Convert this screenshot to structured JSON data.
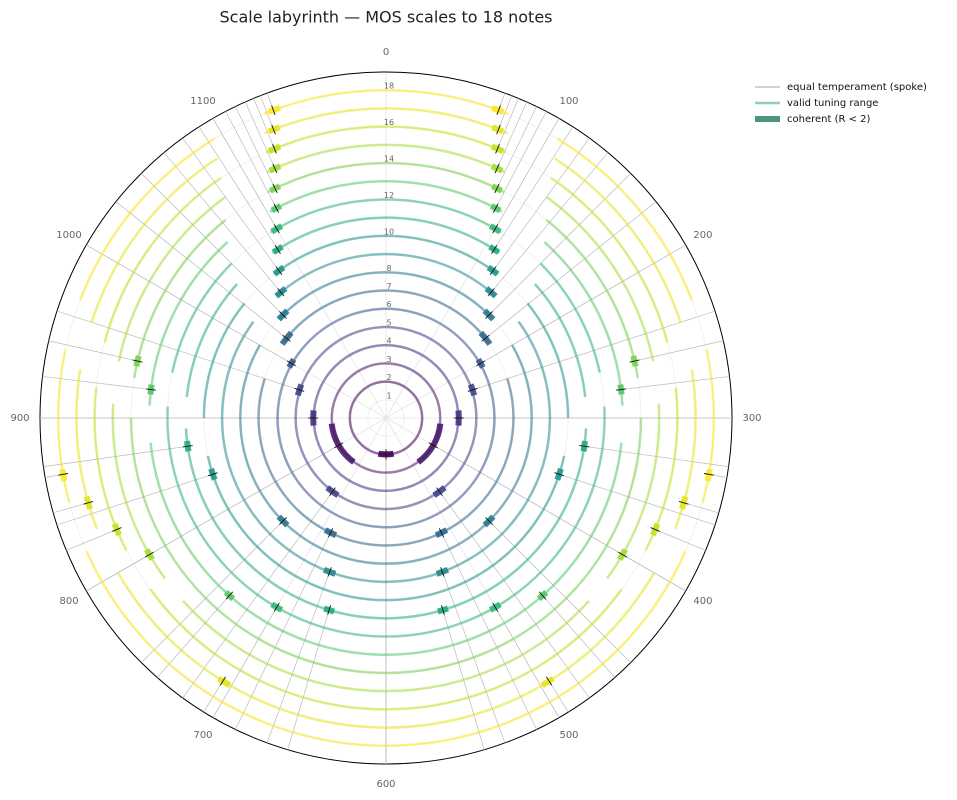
{
  "chart_data": {
    "type": "polar-mos",
    "title": "Scale labyrinth — MOS scales to 18 notes",
    "theta_range": [
      0,
      1200
    ],
    "thetaticks": [
      0,
      100,
      200,
      300,
      400,
      500,
      600,
      700,
      800,
      900,
      1000,
      1100
    ],
    "rlim": [
      0,
      19
    ],
    "rticks": [
      1,
      2,
      3,
      4,
      5,
      6,
      7,
      8,
      10,
      12,
      14,
      16,
      18
    ],
    "legend": {
      "spoke": "equal temperament (spoke)",
      "range": "valid tuning range",
      "coherent": "coherent (R < 2)"
    },
    "rings": [
      {
        "n": 2,
        "color": "#440154",
        "ranges": [
          [
            0,
            600
          ]
        ],
        "coherent": [
          [
            560,
            600
          ]
        ],
        "et": [
          600
        ]
      },
      {
        "n": 3,
        "color": "#481a6c",
        "ranges": [
          [
            0,
            600
          ]
        ],
        "coherent": [
          [
            320,
            480
          ]
        ],
        "et": [
          400
        ]
      },
      {
        "n": 4,
        "color": "#472f7d",
        "ranges": [
          [
            0,
            600
          ]
        ],
        "coherent": [
          [
            280,
            320
          ]
        ],
        "et": [
          300
        ]
      },
      {
        "n": 5,
        "color": "#414487",
        "ranges": [
          [
            0,
            600
          ]
        ],
        "coherent": [
          [
            228,
            252
          ],
          [
            466,
            494
          ]
        ],
        "et": [
          240,
          480
        ]
      },
      {
        "n": 6,
        "color": "#39568c",
        "ranges": [
          [
            0,
            600
          ]
        ],
        "coherent": [
          [
            192,
            208
          ]
        ],
        "et": [
          200
        ]
      },
      {
        "n": 7,
        "color": "#31688e",
        "ranges": [
          [
            0,
            178
          ],
          [
            240,
            600
          ]
        ],
        "coherent": [
          [
            160,
            182
          ],
          [
            505,
            523
          ]
        ],
        "et": [
          171,
          514
        ]
      },
      {
        "n": 8,
        "color": "#2a788e",
        "ranges": [
          [
            0,
            156
          ],
          [
            200,
            600
          ]
        ],
        "coherent": [
          [
            142,
            158
          ],
          [
            442,
            458
          ]
        ],
        "et": [
          150,
          450
        ]
      },
      {
        "n": 9,
        "color": "#23888e",
        "ranges": [
          [
            0,
            140
          ],
          [
            180,
            600
          ]
        ],
        "coherent": [
          [
            126,
            140
          ],
          [
            526,
            540
          ]
        ],
        "et": [
          133,
          533
        ]
      },
      {
        "n": 10,
        "color": "#1f988b",
        "ranges": [
          [
            0,
            126
          ],
          [
            170,
            300
          ],
          [
            340,
            600
          ]
        ],
        "coherent": [
          [
            114,
            126
          ],
          [
            354,
            366
          ]
        ],
        "et": [
          120,
          360
        ]
      },
      {
        "n": 11,
        "color": "#22a884",
        "ranges": [
          [
            0,
            115
          ],
          [
            160,
            280
          ],
          [
            310,
            600
          ]
        ],
        "coherent": [
          [
            104,
            114
          ],
          [
            322,
            332
          ],
          [
            540,
            550
          ]
        ],
        "et": [
          109,
          327,
          545
        ]
      },
      {
        "n": 12,
        "color": "#35b779",
        "ranges": [
          [
            0,
            106
          ],
          [
            150,
            260
          ],
          [
            290,
            600
          ]
        ],
        "coherent": [
          [
            95,
            105
          ],
          [
            495,
            505
          ]
        ],
        "et": [
          100,
          500
        ]
      },
      {
        "n": 13,
        "color": "#54c568",
        "ranges": [
          [
            0,
            98
          ],
          [
            140,
            290
          ],
          [
            320,
            600
          ]
        ],
        "coherent": [
          [
            88,
            96
          ],
          [
            273,
            281
          ],
          [
            458,
            466
          ]
        ],
        "et": [
          92,
          277,
          462
        ]
      },
      {
        "n": 14,
        "color": "#7ad151",
        "ranges": [
          [
            0,
            92
          ],
          [
            130,
            270
          ],
          [
            300,
            600
          ]
        ],
        "coherent": [
          [
            82,
            90
          ],
          [
            253,
            261
          ]
        ],
        "et": [
          86,
          257
        ]
      },
      {
        "n": 15,
        "color": "#a5db36",
        "ranges": [
          [
            0,
            86
          ],
          [
            120,
            260
          ],
          [
            290,
            420
          ],
          [
            440,
            600
          ]
        ],
        "coherent": [
          [
            76,
            84
          ],
          [
            396,
            404
          ]
        ],
        "et": [
          80,
          400
        ]
      },
      {
        "n": 16,
        "color": "#c8e020",
        "ranges": [
          [
            0,
            81
          ],
          [
            115,
            250
          ],
          [
            280,
            390
          ],
          [
            420,
            600
          ]
        ],
        "coherent": [
          [
            71,
            79
          ],
          [
            371,
            379
          ]
        ],
        "et": [
          75,
          375
        ]
      },
      {
        "n": 17,
        "color": "#e2e418",
        "ranges": [
          [
            0,
            77
          ],
          [
            110,
            240
          ],
          [
            270,
            370
          ],
          [
            400,
            600
          ]
        ],
        "coherent": [
          [
            67,
            74
          ],
          [
            349,
            357
          ],
          [
            491,
            499
          ]
        ],
        "et": [
          71,
          353,
          494
        ]
      },
      {
        "n": 18,
        "color": "#fde725",
        "ranges": [
          [
            0,
            73
          ],
          [
            105,
            230
          ],
          [
            260,
            350
          ],
          [
            380,
            600
          ]
        ],
        "coherent": [
          [
            63,
            70
          ],
          [
            330,
            337
          ]
        ],
        "et": [
          67,
          333
        ]
      }
    ]
  }
}
